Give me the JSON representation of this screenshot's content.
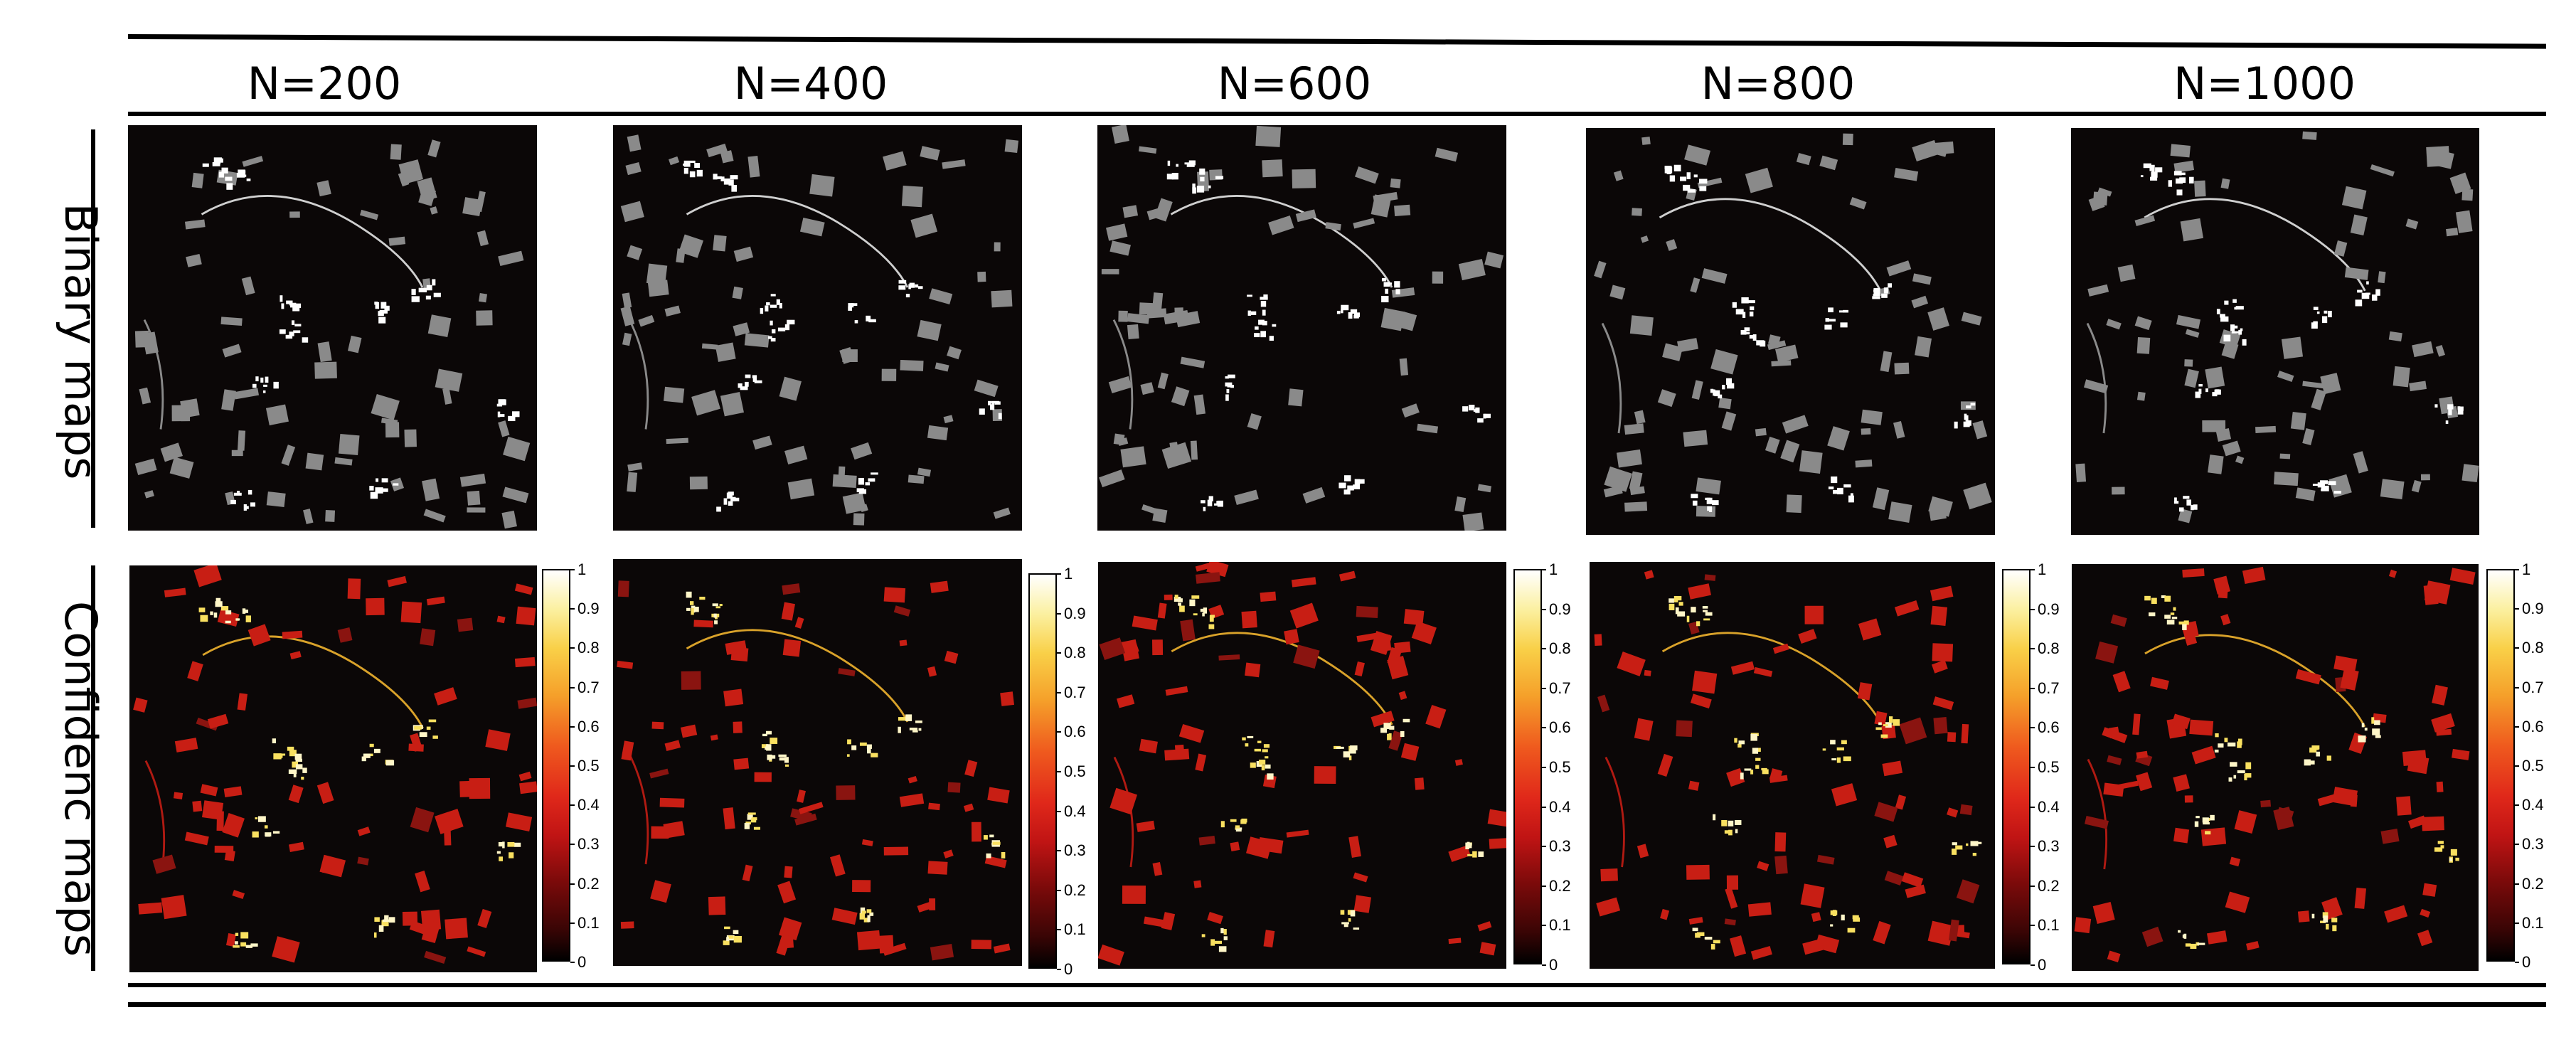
{
  "columns": [
    "N=200",
    "N=400",
    "N=600",
    "N=800",
    "N=1000"
  ],
  "rows": [
    "Binary  maps",
    "Confidenc maps"
  ],
  "colorbar_ticks": [
    "1",
    "0.9",
    "0.8",
    "0.7",
    "0.6",
    "0.5",
    "0.4",
    "0.3",
    "0.2",
    "0.1",
    "0"
  ],
  "colors": {
    "map_background": "#0b0707",
    "binary_foreground": "#8a8a8a",
    "binary_highlight": "#ffffff",
    "confidence_low": "#c81e14",
    "confidence_high": "#f9e060"
  }
}
